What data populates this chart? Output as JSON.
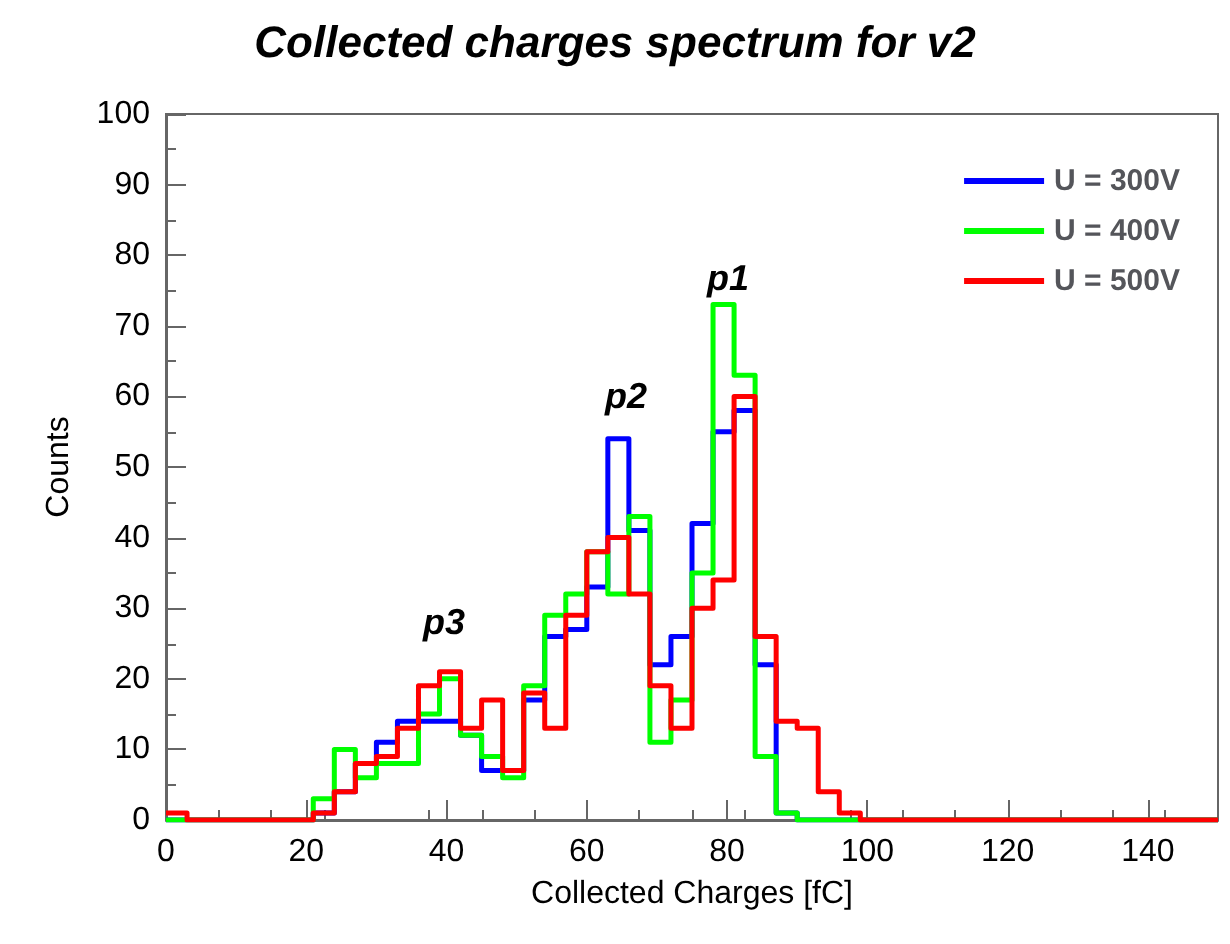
{
  "chart_data": {
    "type": "histogram",
    "title": "Collected charges spectrum for v2",
    "xlabel": "Collected Charges [fC]",
    "ylabel": "Counts",
    "bins": [
      0,
      3,
      6,
      9,
      12,
      15,
      18,
      21,
      24,
      27,
      30,
      33,
      36,
      39,
      42,
      45,
      48,
      51,
      54,
      57,
      60,
      63,
      66,
      69,
      72,
      75,
      78,
      81,
      84,
      87,
      90,
      93,
      96,
      99,
      102,
      105,
      108,
      111,
      114,
      117,
      120,
      123,
      126,
      129,
      132,
      135,
      138,
      141,
      144,
      147,
      150
    ],
    "series": [
      {
        "name": "U = 300V",
        "color": "#0000ff",
        "values": [
          0,
          0,
          0,
          0,
          0,
          0,
          0,
          1,
          4,
          8,
          11,
          14,
          14,
          14,
          12,
          7,
          7,
          17,
          26,
          27,
          33,
          54,
          41,
          22,
          26,
          42,
          55,
          58,
          22,
          1,
          0,
          0,
          0,
          0,
          0,
          0,
          0,
          0,
          0,
          0,
          0,
          0,
          0,
          0,
          0,
          0,
          0,
          0,
          0,
          0
        ]
      },
      {
        "name": "U = 400V",
        "color": "#00ff00",
        "values": [
          0,
          0,
          0,
          0,
          0,
          0,
          0,
          3,
          10,
          6,
          8,
          8,
          15,
          20,
          12,
          9,
          6,
          19,
          29,
          32,
          38,
          32,
          43,
          11,
          17,
          35,
          73,
          63,
          9,
          1,
          0,
          0,
          0,
          0,
          0,
          0,
          0,
          0,
          0,
          0,
          0,
          0,
          0,
          0,
          0,
          0,
          0,
          0,
          0,
          0
        ]
      },
      {
        "name": "U = 500V",
        "color": "#ff0000",
        "values": [
          1,
          0,
          0,
          0,
          0,
          0,
          0,
          1,
          4,
          8,
          9,
          13,
          19,
          21,
          13,
          17,
          7,
          18,
          13,
          29,
          38,
          40,
          32,
          19,
          13,
          30,
          34,
          60,
          26,
          14,
          13,
          4,
          1,
          0,
          0,
          0,
          0,
          0,
          0,
          0,
          0,
          0,
          0,
          0,
          0,
          0,
          0,
          0,
          0,
          0
        ]
      }
    ],
    "annotations": [
      "p1",
      "p2",
      "p3"
    ],
    "xlim": [
      0,
      150
    ],
    "xticks": [
      0,
      20,
      40,
      60,
      80,
      100,
      120,
      140
    ],
    "ylim": [
      0,
      100
    ],
    "yticks": [
      0,
      10,
      20,
      30,
      40,
      50,
      60,
      70,
      80,
      90,
      100
    ],
    "legend": "top right",
    "grid": false,
    "line_style": "solid",
    "marker": "none"
  }
}
